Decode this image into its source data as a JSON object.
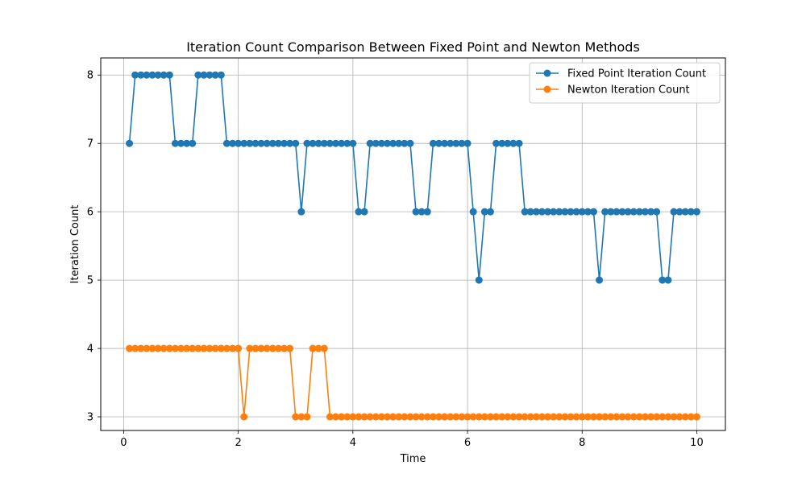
{
  "chart_data": {
    "type": "line",
    "title": "Iteration Count Comparison Between Fixed Point and Newton Methods",
    "xlabel": "Time",
    "ylabel": "Iteration Count",
    "xlim": [
      -0.4,
      10.5
    ],
    "ylim": [
      2.8,
      8.25
    ],
    "xticks": [
      0,
      2,
      4,
      6,
      8,
      10
    ],
    "yticks": [
      3,
      4,
      5,
      6,
      7,
      8
    ],
    "grid": true,
    "legend_position": "top-right",
    "series": [
      {
        "name": "Fixed Point Iteration Count",
        "color": "#1f77b4",
        "marker": "circle",
        "x": [
          0.1,
          0.2,
          0.3,
          0.4,
          0.5,
          0.6,
          0.7,
          0.8,
          0.9,
          1.0,
          1.1,
          1.2,
          1.3,
          1.4,
          1.5,
          1.6,
          1.7,
          1.8,
          1.9,
          2.0,
          2.1,
          2.2,
          2.3,
          2.4,
          2.5,
          2.6,
          2.7,
          2.8,
          2.9,
          3.0,
          3.1,
          3.2,
          3.3,
          3.4,
          3.5,
          3.6,
          3.7,
          3.8,
          3.9,
          4.0,
          4.1,
          4.2,
          4.3,
          4.4,
          4.5,
          4.6,
          4.7,
          4.8,
          4.9,
          5.0,
          5.1,
          5.2,
          5.3,
          5.4,
          5.5,
          5.6,
          5.7,
          5.8,
          5.9,
          6.0,
          6.1,
          6.2,
          6.3,
          6.4,
          6.5,
          6.6,
          6.7,
          6.8,
          6.9,
          7.0,
          7.1,
          7.2,
          7.3,
          7.4,
          7.5,
          7.6,
          7.7,
          7.8,
          7.9,
          8.0,
          8.1,
          8.2,
          8.3,
          8.4,
          8.5,
          8.6,
          8.7,
          8.8,
          8.9,
          9.0,
          9.1,
          9.2,
          9.3,
          9.4,
          9.5,
          9.6,
          9.7,
          9.8,
          9.9,
          10.0
        ],
        "values": [
          7,
          8,
          8,
          8,
          8,
          8,
          8,
          8,
          7,
          7,
          7,
          7,
          8,
          8,
          8,
          8,
          8,
          7,
          7,
          7,
          7,
          7,
          7,
          7,
          7,
          7,
          7,
          7,
          7,
          7,
          6,
          7,
          7,
          7,
          7,
          7,
          7,
          7,
          7,
          7,
          6,
          6,
          7,
          7,
          7,
          7,
          7,
          7,
          7,
          7,
          6,
          6,
          6,
          7,
          7,
          7,
          7,
          7,
          7,
          7,
          6,
          5,
          6,
          6,
          7,
          7,
          7,
          7,
          7,
          6,
          6,
          6,
          6,
          6,
          6,
          6,
          6,
          6,
          6,
          6,
          6,
          6,
          5,
          6,
          6,
          6,
          6,
          6,
          6,
          6,
          6,
          6,
          6,
          5,
          5,
          6,
          6,
          6,
          6,
          6
        ]
      },
      {
        "name": "Newton Iteration Count",
        "color": "#ff7f0e",
        "marker": "circle",
        "x": [
          0.1,
          0.2,
          0.3,
          0.4,
          0.5,
          0.6,
          0.7,
          0.8,
          0.9,
          1.0,
          1.1,
          1.2,
          1.3,
          1.4,
          1.5,
          1.6,
          1.7,
          1.8,
          1.9,
          2.0,
          2.1,
          2.2,
          2.3,
          2.4,
          2.5,
          2.6,
          2.7,
          2.8,
          2.9,
          3.0,
          3.1,
          3.2,
          3.3,
          3.4,
          3.5,
          3.6,
          3.7,
          3.8,
          3.9,
          4.0,
          4.1,
          4.2,
          4.3,
          4.4,
          4.5,
          4.6,
          4.7,
          4.8,
          4.9,
          5.0,
          5.1,
          5.2,
          5.3,
          5.4,
          5.5,
          5.6,
          5.7,
          5.8,
          5.9,
          6.0,
          6.1,
          6.2,
          6.3,
          6.4,
          6.5,
          6.6,
          6.7,
          6.8,
          6.9,
          7.0,
          7.1,
          7.2,
          7.3,
          7.4,
          7.5,
          7.6,
          7.7,
          7.8,
          7.9,
          8.0,
          8.1,
          8.2,
          8.3,
          8.4,
          8.5,
          8.6,
          8.7,
          8.8,
          8.9,
          9.0,
          9.1,
          9.2,
          9.3,
          9.4,
          9.5,
          9.6,
          9.7,
          9.8,
          9.9,
          10.0
        ],
        "values": [
          4,
          4,
          4,
          4,
          4,
          4,
          4,
          4,
          4,
          4,
          4,
          4,
          4,
          4,
          4,
          4,
          4,
          4,
          4,
          4,
          3,
          4,
          4,
          4,
          4,
          4,
          4,
          4,
          4,
          3,
          3,
          3,
          4,
          4,
          4,
          3,
          3,
          3,
          3,
          3,
          3,
          3,
          3,
          3,
          3,
          3,
          3,
          3,
          3,
          3,
          3,
          3,
          3,
          3,
          3,
          3,
          3,
          3,
          3,
          3,
          3,
          3,
          3,
          3,
          3,
          3,
          3,
          3,
          3,
          3,
          3,
          3,
          3,
          3,
          3,
          3,
          3,
          3,
          3,
          3,
          3,
          3,
          3,
          3,
          3,
          3,
          3,
          3,
          3,
          3,
          3,
          3,
          3,
          3,
          3,
          3,
          3,
          3,
          3,
          3
        ]
      }
    ]
  }
}
